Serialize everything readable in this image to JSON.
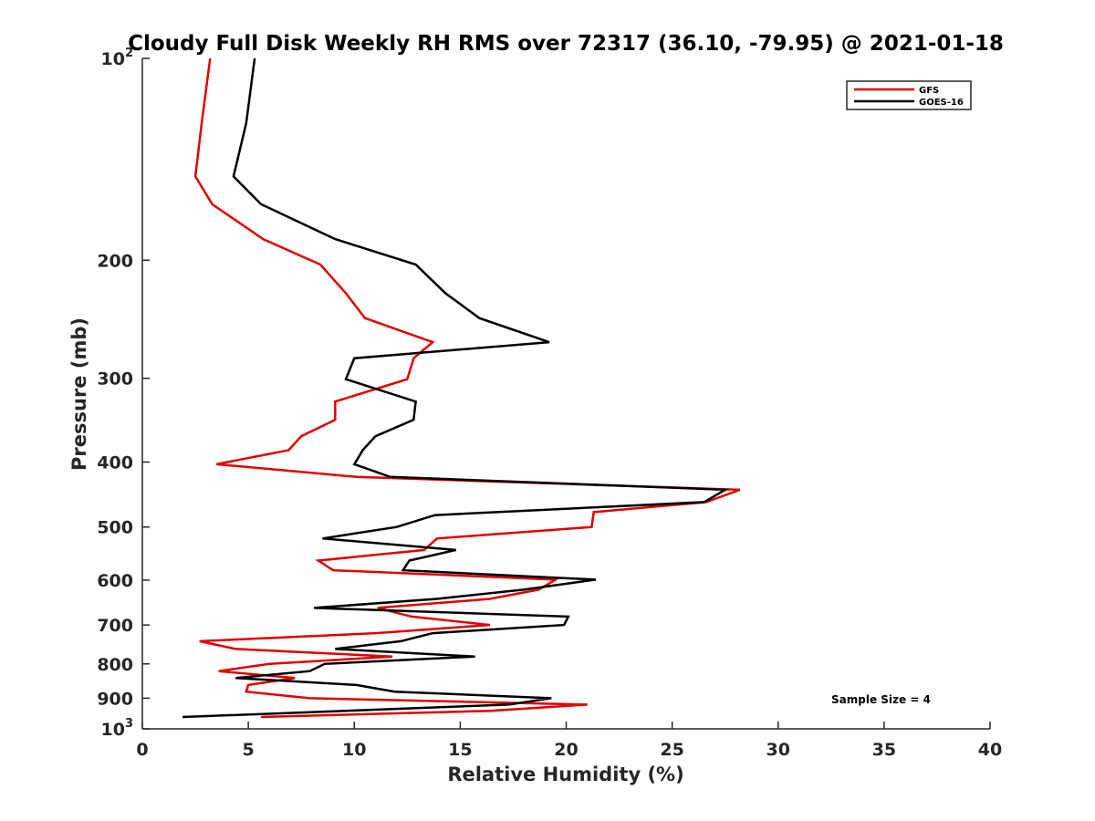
{
  "chart_data": {
    "type": "line",
    "title": "Cloudy Full Disk Weekly RH RMS over 72317 (36.10, -79.95) @ 2021-01-18",
    "xlabel": "Relative Humidity (%)",
    "ylabel": "Pressure (mb)",
    "xlim": [
      0,
      40
    ],
    "ylim": [
      100,
      1000
    ],
    "y_scale": "log",
    "y_reversed": true,
    "x_ticks": [
      "0",
      "5",
      "10",
      "15",
      "20",
      "25",
      "30",
      "35",
      "40"
    ],
    "x_tick_values": [
      0,
      5,
      10,
      15,
      20,
      25,
      30,
      35,
      40
    ],
    "y_ticks": [
      {
        "value": 100,
        "base": "10",
        "exp": "2"
      },
      {
        "value": 200,
        "label": "200"
      },
      {
        "value": 300,
        "label": "300"
      },
      {
        "value": 400,
        "label": "400"
      },
      {
        "value": 500,
        "label": "500"
      },
      {
        "value": 600,
        "label": "600"
      },
      {
        "value": 700,
        "label": "700"
      },
      {
        "value": 800,
        "label": "800"
      },
      {
        "value": 900,
        "label": "900"
      },
      {
        "value": 1000,
        "base": "10",
        "exp": "3"
      }
    ],
    "grid": false,
    "legend_position": "top-right",
    "annotation": "Sample Size = 4",
    "series": [
      {
        "name": "GFS",
        "color": "#e00000",
        "points": [
          [
            3.2,
            100
          ],
          [
            2.8,
            125
          ],
          [
            2.5,
            150
          ],
          [
            3.3,
            165
          ],
          [
            5.7,
            186
          ],
          [
            8.4,
            203
          ],
          [
            9.6,
            224
          ],
          [
            10.5,
            244
          ],
          [
            13.7,
            265
          ],
          [
            12.8,
            280
          ],
          [
            12.5,
            301
          ],
          [
            9.1,
            325
          ],
          [
            9.1,
            346
          ],
          [
            7.5,
            366
          ],
          [
            6.9,
            384
          ],
          [
            3.5,
            403
          ],
          [
            10.1,
            421
          ],
          [
            28.2,
            440
          ],
          [
            26.6,
            459
          ],
          [
            21.3,
            475
          ],
          [
            21.2,
            500
          ],
          [
            13.9,
            520
          ],
          [
            13.3,
            541
          ],
          [
            8.3,
            561
          ],
          [
            9.0,
            580
          ],
          [
            19.5,
            599
          ],
          [
            18.7,
            620
          ],
          [
            16.4,
            640
          ],
          [
            11.1,
            660
          ],
          [
            12.7,
            680
          ],
          [
            16.4,
            700
          ],
          [
            11.0,
            720
          ],
          [
            2.7,
            740
          ],
          [
            4.4,
            760
          ],
          [
            11.8,
            780
          ],
          [
            6.0,
            800
          ],
          [
            3.6,
            820
          ],
          [
            7.2,
            840
          ],
          [
            5.0,
            860
          ],
          [
            4.9,
            880
          ],
          [
            7.9,
            900
          ],
          [
            21.0,
            920
          ],
          [
            16.4,
            940
          ],
          [
            5.6,
            960
          ]
        ]
      },
      {
        "name": "GOES-16",
        "color": "#000000",
        "points": [
          [
            5.3,
            100
          ],
          [
            4.9,
            125
          ],
          [
            4.3,
            150
          ],
          [
            5.6,
            165
          ],
          [
            9.1,
            186
          ],
          [
            12.9,
            203
          ],
          [
            14.3,
            224
          ],
          [
            15.9,
            244
          ],
          [
            19.2,
            265
          ],
          [
            10.0,
            280
          ],
          [
            9.6,
            301
          ],
          [
            12.9,
            325
          ],
          [
            12.8,
            346
          ],
          [
            11.0,
            366
          ],
          [
            10.4,
            384
          ],
          [
            10.0,
            403
          ],
          [
            11.7,
            421
          ],
          [
            27.5,
            440
          ],
          [
            26.5,
            459
          ],
          [
            13.8,
            480
          ],
          [
            12.0,
            500
          ],
          [
            8.5,
            520
          ],
          [
            14.8,
            541
          ],
          [
            12.6,
            561
          ],
          [
            12.3,
            580
          ],
          [
            21.4,
            599
          ],
          [
            18.0,
            620
          ],
          [
            13.9,
            640
          ],
          [
            8.1,
            660
          ],
          [
            20.1,
            680
          ],
          [
            19.9,
            700
          ],
          [
            13.7,
            720
          ],
          [
            12.2,
            740
          ],
          [
            9.1,
            760
          ],
          [
            15.7,
            780
          ],
          [
            8.6,
            800
          ],
          [
            7.9,
            820
          ],
          [
            4.4,
            840
          ],
          [
            10.1,
            860
          ],
          [
            11.9,
            880
          ],
          [
            19.3,
            900
          ],
          [
            17.3,
            920
          ],
          [
            1.9,
            960
          ]
        ]
      }
    ]
  }
}
